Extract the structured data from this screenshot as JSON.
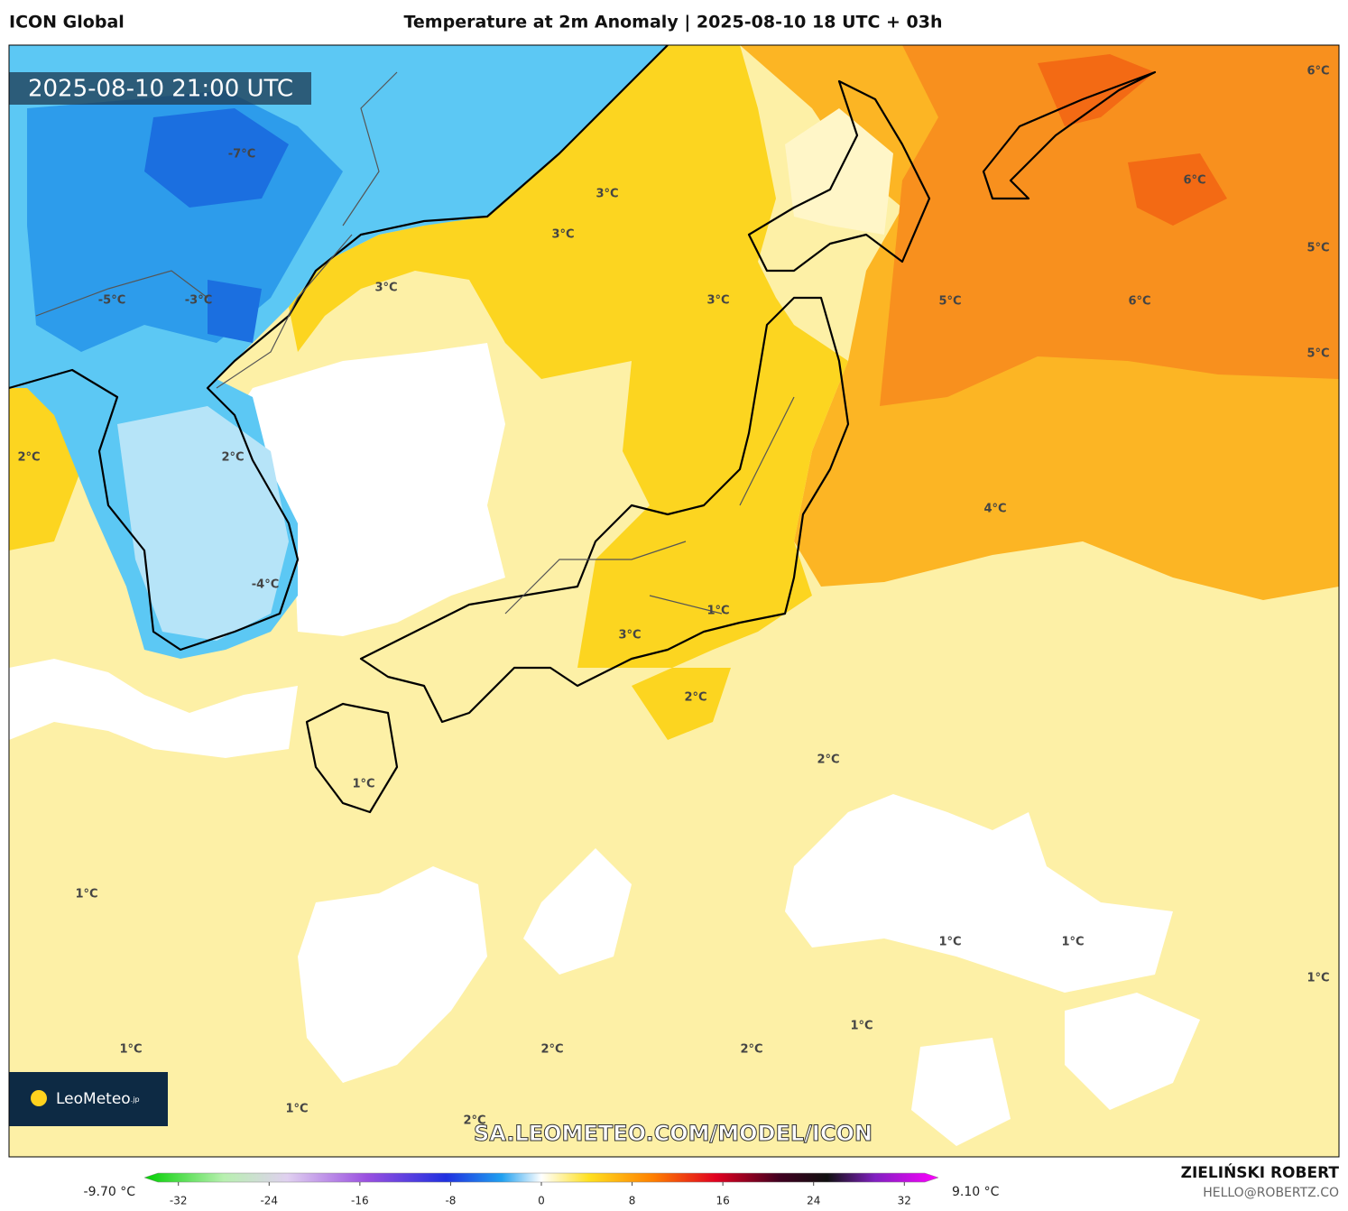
{
  "header": {
    "model": "ICON Global",
    "title": "Temperature at 2m Anomaly | 2025-08-10 18 UTC + 03h"
  },
  "valid_time": "2025-08-10 21:00 UTC",
  "contour_labels": [
    "3°C",
    "3°C",
    "3°C",
    "3°C",
    "-7°C",
    "-5°C",
    "-3°C",
    "2°C",
    "2°C",
    "-4°C",
    "6°C",
    "6°C",
    "5°C",
    "5°C",
    "6°C",
    "5°C",
    "4°C",
    "1°C",
    "3°C",
    "2°C",
    "2°C",
    "1°C",
    "1°C",
    "1°C",
    "1°C",
    "1°C",
    "1°C",
    "1°C",
    "2°C",
    "2°C",
    "1°C",
    "2°C"
  ],
  "logo": {
    "name": "LeoMeteo",
    "suffix": ".jp"
  },
  "watermark": "SA.LEOMETEO.COM/MODEL/ICON",
  "legend": {
    "min_label": "-9.70 °C",
    "max_label": "9.10 °C",
    "lim": [
      -35,
      35
    ],
    "ticks": [
      -32,
      -24,
      -16,
      -8,
      0,
      8,
      16,
      24,
      32
    ]
  },
  "footer": {
    "author": "ZIELIŃSKI ROBERT",
    "email": "HELLO@ROBERTZ.CO"
  }
}
